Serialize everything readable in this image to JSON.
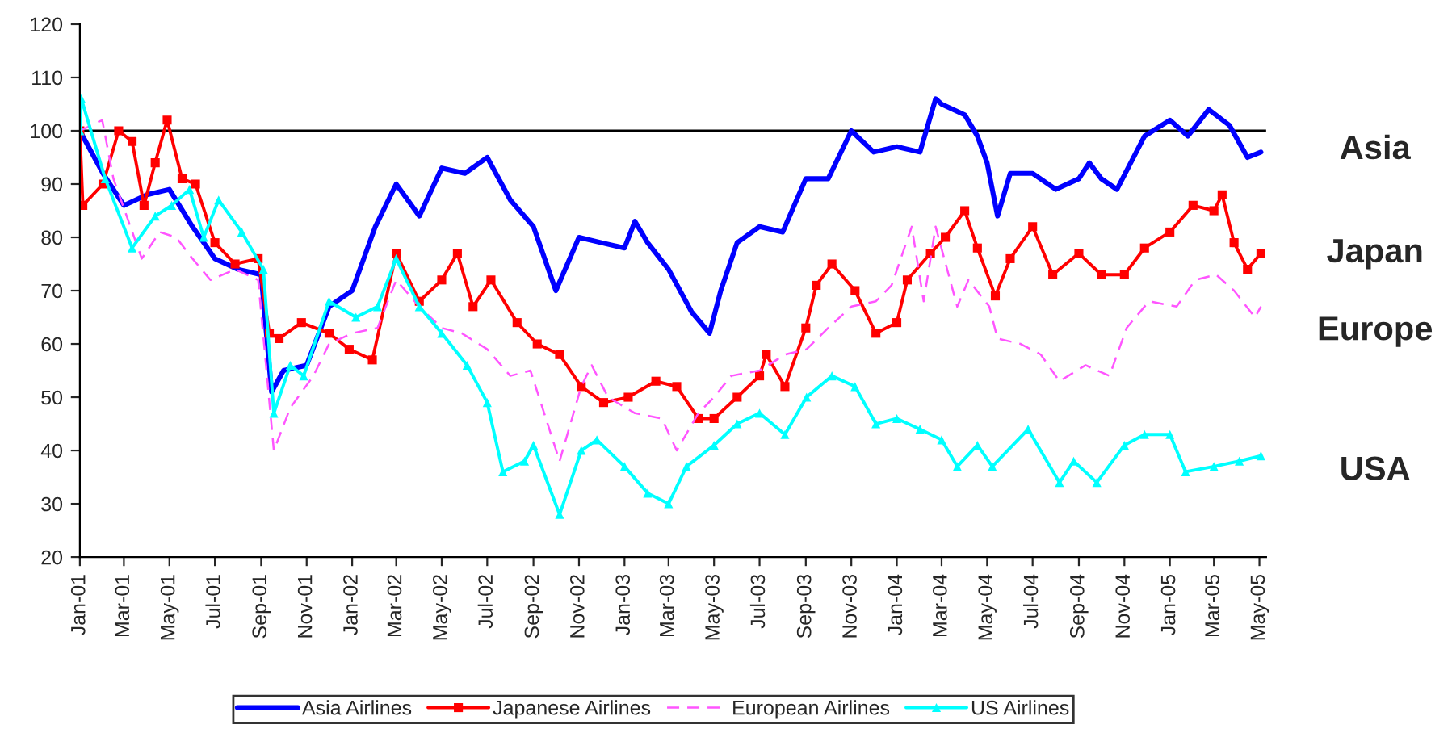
{
  "chart_data": {
    "type": "line",
    "ylim": [
      20,
      120
    ],
    "yticks": [
      20,
      30,
      40,
      50,
      60,
      70,
      80,
      90,
      100,
      110,
      120
    ],
    "xlim": [
      "2001-01-01",
      "2005-05-10"
    ],
    "xticks": [
      {
        "value": "2001-01-01",
        "label": "Jan-01"
      },
      {
        "value": "2001-03-01",
        "label": "Mar-01"
      },
      {
        "value": "2001-05-01",
        "label": "May-01"
      },
      {
        "value": "2001-07-01",
        "label": "Jul-01"
      },
      {
        "value": "2001-09-01",
        "label": "Sep-01"
      },
      {
        "value": "2001-11-01",
        "label": "Nov-01"
      },
      {
        "value": "2002-01-01",
        "label": "Jan-02"
      },
      {
        "value": "2002-03-01",
        "label": "Mar-02"
      },
      {
        "value": "2002-05-01",
        "label": "May-02"
      },
      {
        "value": "2002-07-01",
        "label": "Jul-02"
      },
      {
        "value": "2002-09-01",
        "label": "Sep-02"
      },
      {
        "value": "2002-11-01",
        "label": "Nov-02"
      },
      {
        "value": "2003-01-01",
        "label": "Jan-03"
      },
      {
        "value": "2003-03-01",
        "label": "Mar-03"
      },
      {
        "value": "2003-05-01",
        "label": "May-03"
      },
      {
        "value": "2003-07-01",
        "label": "Jul-03"
      },
      {
        "value": "2003-09-01",
        "label": "Sep-03"
      },
      {
        "value": "2003-11-01",
        "label": "Nov-03"
      },
      {
        "value": "2004-01-01",
        "label": "Jan-04"
      },
      {
        "value": "2004-03-01",
        "label": "Mar-04"
      },
      {
        "value": "2004-05-01",
        "label": "May-04"
      },
      {
        "value": "2004-07-01",
        "label": "Jul-04"
      },
      {
        "value": "2004-09-01",
        "label": "Sep-04"
      },
      {
        "value": "2004-11-01",
        "label": "Nov-04"
      },
      {
        "value": "2005-01-01",
        "label": "Jan-05"
      },
      {
        "value": "2005-03-01",
        "label": "Mar-05"
      },
      {
        "value": "2005-05-01",
        "label": "May-05"
      }
    ],
    "grid": false,
    "legend": "bottom",
    "ref_lines": [
      {
        "axis": "y",
        "value": 100,
        "color": "#000000"
      }
    ],
    "annotations": [
      "Asia",
      "Japan",
      "Europe",
      "USA"
    ],
    "series": [
      {
        "name": "Asia Airlines",
        "color": "#0000ff",
        "marker": "none",
        "line_style": "solid",
        "x": [
          "2001-01-01",
          "2001-02-01",
          "2001-03-01",
          "2001-04-01",
          "2001-05-01",
          "2001-06-01",
          "2001-07-01",
          "2001-08-01",
          "2001-09-01",
          "2001-09-15",
          "2001-10-01",
          "2001-11-01",
          "2001-12-01",
          "2002-01-01",
          "2002-02-01",
          "2002-03-01",
          "2002-04-01",
          "2002-05-01",
          "2002-06-01",
          "2002-07-01",
          "2002-08-01",
          "2002-09-01",
          "2002-10-01",
          "2002-11-01",
          "2002-12-01",
          "2003-01-01",
          "2003-01-15",
          "2003-02-01",
          "2003-03-01",
          "2003-04-01",
          "2003-04-25",
          "2003-05-10",
          "2003-06-01",
          "2003-07-01",
          "2003-08-01",
          "2003-09-01",
          "2003-10-01",
          "2003-11-01",
          "2003-12-01",
          "2004-01-01",
          "2004-02-01",
          "2004-02-22",
          "2004-03-01",
          "2004-04-01",
          "2004-04-18",
          "2004-05-01",
          "2004-05-15",
          "2004-06-01",
          "2004-07-01",
          "2004-08-01",
          "2004-09-01",
          "2004-09-15",
          "2004-10-01",
          "2004-10-22",
          "2004-11-28",
          "2005-01-01",
          "2005-01-25",
          "2005-02-22",
          "2005-03-22",
          "2005-04-15",
          "2005-05-03"
        ],
        "values": [
          100,
          92,
          86,
          88,
          89,
          82,
          76,
          74,
          73,
          51,
          55,
          56,
          67,
          70,
          82,
          90,
          84,
          93,
          92,
          95,
          87,
          82,
          70,
          80,
          79,
          78,
          83,
          79,
          74,
          66,
          62,
          70,
          79,
          82,
          81,
          91,
          91,
          100,
          96,
          97,
          96,
          106,
          105,
          103,
          99,
          94,
          84,
          92,
          92,
          89,
          91,
          94,
          91,
          89,
          99,
          102,
          99,
          104,
          101,
          95,
          96
        ]
      },
      {
        "name": "Japanese Airlines",
        "color": "#ff0000",
        "marker": "square",
        "line_style": "solid",
        "x": [
          "2001-01-01",
          "2001-01-05",
          "2001-02-01",
          "2001-02-22",
          "2001-03-12",
          "2001-03-28",
          "2001-04-12",
          "2001-04-28",
          "2001-05-18",
          "2001-06-05",
          "2001-07-01",
          "2001-07-28",
          "2001-08-28",
          "2001-09-12",
          "2001-09-25",
          "2001-10-25",
          "2001-12-01",
          "2001-12-28",
          "2002-01-28",
          "2002-03-01",
          "2002-04-01",
          "2002-05-01",
          "2002-05-22",
          "2002-06-12",
          "2002-07-06",
          "2002-08-10",
          "2002-09-06",
          "2002-10-06",
          "2002-11-04",
          "2002-12-04",
          "2003-01-06",
          "2003-02-12",
          "2003-03-12",
          "2003-04-10",
          "2003-05-01",
          "2003-06-01",
          "2003-07-01",
          "2003-07-10",
          "2003-08-04",
          "2003-09-01",
          "2003-09-15",
          "2003-10-06",
          "2003-11-06",
          "2003-12-04",
          "2004-01-01",
          "2004-01-15",
          "2004-02-15",
          "2004-03-06",
          "2004-04-01",
          "2004-04-18",
          "2004-05-12",
          "2004-06-01",
          "2004-07-01",
          "2004-07-28",
          "2004-09-01",
          "2004-10-01",
          "2004-11-01",
          "2004-11-28",
          "2005-01-01",
          "2005-02-01",
          "2005-03-01",
          "2005-03-12",
          "2005-03-28",
          "2005-04-15",
          "2005-05-03"
        ],
        "values": [
          100,
          86,
          90,
          100,
          98,
          86,
          94,
          102,
          91,
          90,
          79,
          75,
          76,
          62,
          61,
          64,
          62,
          59,
          57,
          77,
          68,
          72,
          77,
          67,
          72,
          64,
          60,
          58,
          52,
          49,
          50,
          53,
          52,
          46,
          46,
          50,
          54,
          58,
          52,
          63,
          71,
          75,
          70,
          62,
          64,
          72,
          77,
          80,
          85,
          78,
          69,
          76,
          82,
          73,
          77,
          73,
          73,
          78,
          81,
          86,
          85,
          88,
          79,
          74,
          77
        ]
      },
      {
        "name": "European Airlines",
        "color": "#ff55ff",
        "marker": "none",
        "line_style": "dashed",
        "x": [
          "2001-01-01",
          "2001-01-31",
          "2001-02-15",
          "2001-03-25",
          "2001-04-18",
          "2001-05-10",
          "2001-06-01",
          "2001-06-25",
          "2001-07-28",
          "2001-08-28",
          "2001-09-18",
          "2001-10-10",
          "2001-11-10",
          "2001-12-01",
          "2002-01-01",
          "2002-02-04",
          "2002-03-01",
          "2002-04-01",
          "2002-05-01",
          "2002-05-28",
          "2002-07-01",
          "2002-08-01",
          "2002-08-28",
          "2002-10-06",
          "2002-11-04",
          "2002-11-18",
          "2002-12-10",
          "2003-01-15",
          "2003-02-20",
          "2003-03-12",
          "2003-04-10",
          "2003-05-01",
          "2003-05-24",
          "2003-07-01",
          "2003-08-04",
          "2003-09-02",
          "2003-10-01",
          "2003-11-01",
          "2003-12-04",
          "2003-12-25",
          "2004-01-21",
          "2004-02-06",
          "2004-02-22",
          "2004-03-22",
          "2004-04-06",
          "2004-05-04",
          "2004-05-15",
          "2004-06-15",
          "2004-07-12",
          "2004-08-06",
          "2004-09-10",
          "2004-10-12",
          "2004-11-04",
          "2004-12-04",
          "2005-01-10",
          "2005-02-04",
          "2005-03-04",
          "2005-03-28",
          "2005-04-25",
          "2005-05-03"
        ],
        "values": [
          100,
          102,
          91,
          76,
          81,
          80,
          76,
          72,
          74,
          72,
          40,
          48,
          54,
          60,
          62,
          63,
          72,
          67,
          63,
          62,
          59,
          54,
          55,
          38,
          52,
          56,
          50,
          47,
          46,
          40,
          47,
          50,
          54,
          55,
          58,
          59,
          63,
          67,
          68,
          71,
          82,
          68,
          82,
          67,
          72,
          67,
          61,
          60,
          58,
          53,
          56,
          54,
          63,
          68,
          67,
          72,
          73,
          70,
          65,
          67
        ]
      },
      {
        "name": "US Airlines",
        "color": "#00ffff",
        "marker": "triangle",
        "line_style": "solid",
        "x": [
          "2001-01-01",
          "2001-01-03",
          "2001-02-04",
          "2001-03-12",
          "2001-04-12",
          "2001-05-04",
          "2001-05-28",
          "2001-06-16",
          "2001-07-06",
          "2001-08-06",
          "2001-09-04",
          "2001-09-18",
          "2001-10-10",
          "2001-10-28",
          "2001-12-01",
          "2002-01-06",
          "2002-02-04",
          "2002-03-01",
          "2002-04-01",
          "2002-05-01",
          "2002-06-04",
          "2002-07-01",
          "2002-07-22",
          "2002-08-20",
          "2002-09-01",
          "2002-10-06",
          "2002-11-04",
          "2002-11-25",
          "2003-01-01",
          "2003-02-01",
          "2003-03-01",
          "2003-03-25",
          "2003-05-01",
          "2003-06-01",
          "2003-07-01",
          "2003-08-04",
          "2003-09-02",
          "2003-10-06",
          "2003-11-06",
          "2003-12-04",
          "2004-01-01",
          "2004-02-01",
          "2004-03-01",
          "2004-03-22",
          "2004-04-18",
          "2004-05-08",
          "2004-06-25",
          "2004-08-06",
          "2004-08-25",
          "2004-09-25",
          "2004-11-01",
          "2004-11-28",
          "2005-01-01",
          "2005-01-22",
          "2005-03-01",
          "2005-04-04",
          "2005-05-03"
        ],
        "values": [
          100,
          106,
          91,
          78,
          84,
          86,
          89,
          80,
          87,
          81,
          74,
          47,
          56,
          54,
          68,
          65,
          67,
          76,
          67,
          62,
          56,
          49,
          36,
          38,
          41,
          28,
          40,
          42,
          37,
          32,
          30,
          37,
          41,
          45,
          47,
          43,
          50,
          54,
          52,
          45,
          46,
          44,
          42,
          37,
          41,
          37,
          44,
          34,
          38,
          34,
          41,
          43,
          43,
          36,
          37,
          38,
          39
        ]
      }
    ]
  }
}
